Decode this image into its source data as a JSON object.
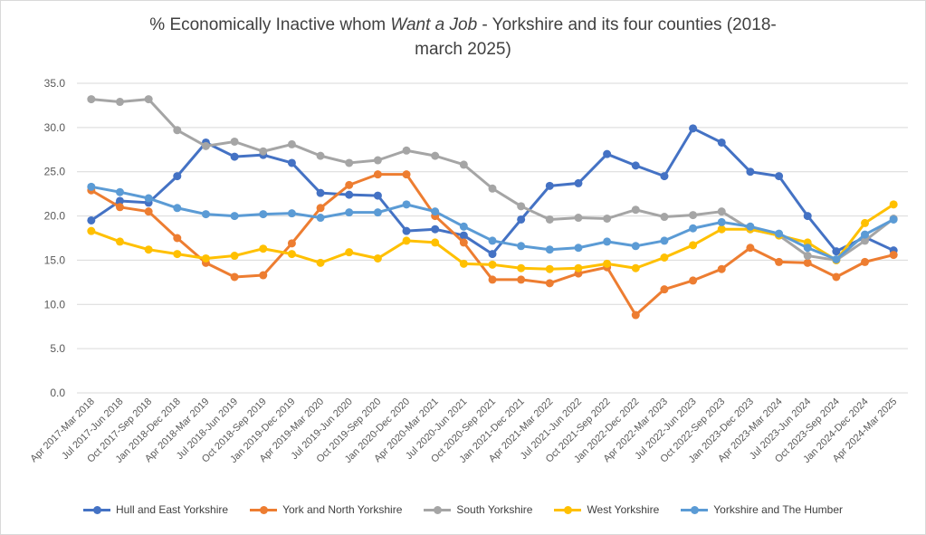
{
  "chart_data": {
    "type": "line",
    "title_parts": [
      "% Economically Inactive whom ",
      "Want a Job",
      "  - Yorkshire and its four counties (2018-",
      "march 2025)"
    ],
    "title": "% Economically Inactive whom Want a Job - Yorkshire and its four counties (2018-march 2025)",
    "xlabel": "",
    "ylabel": "",
    "ylim": [
      0,
      35
    ],
    "yticks": [
      "0.0",
      "5.0",
      "10.0",
      "15.0",
      "20.0",
      "25.0",
      "30.0",
      "35.0"
    ],
    "grid": true,
    "legend_position": "bottom",
    "categories": [
      "Apr 2017-Mar 2018",
      "Jul 2017-Jun 2018",
      "Oct 2017-Sep 2018",
      "Jan 2018-Dec 2018",
      "Apr 2018-Mar 2019",
      "Jul 2018-Jun 2019",
      "Oct 2018-Sep 2019",
      "Jan 2019-Dec 2019",
      "Apr 2019-Mar 2020",
      "Jul 2019-Jun 2020",
      "Oct 2019-Sep 2020",
      "Jan 2020-Dec 2020",
      "Apr 2020-Mar 2021",
      "Jul 2020-Jun 2021",
      "Oct 2020-Sep 2021",
      "Jan 2021-Dec 2021",
      "Apr 2021-Mar 2022",
      "Jul 2021-Jun 2022",
      "Oct 2021-Sep 2022",
      "Jan 2022-Dec 2022",
      "Apr 2022-Mar 2023",
      "Jul 2022-Jun 2023",
      "Oct 2022-Sep 2023",
      "Jan 2023-Dec 2023",
      "Apr 2023-Mar 2024",
      "Jul 2023-Jun 2024",
      "Oct 2023-Sep 2024",
      "Jan 2024-Dec 2024",
      "Apr 2024-Mar 2025"
    ],
    "series": [
      {
        "name": "Hull and East Yorkshire",
        "color": "#4472c4",
        "values": [
          19.5,
          21.7,
          21.5,
          24.5,
          28.3,
          26.7,
          26.9,
          26.0,
          22.6,
          22.4,
          22.3,
          18.3,
          18.5,
          17.8,
          15.7,
          19.6,
          23.4,
          23.7,
          27.0,
          25.7,
          24.5,
          29.9,
          28.3,
          25.0,
          24.5,
          20.0,
          16.0,
          17.6,
          16.1
        ]
      },
      {
        "name": "York and North Yorkshire",
        "color": "#ed7d31",
        "values": [
          22.9,
          21.0,
          20.5,
          17.5,
          14.7,
          13.1,
          13.3,
          16.9,
          20.9,
          23.5,
          24.7,
          24.7,
          20.0,
          17.0,
          12.8,
          12.8,
          12.4,
          13.5,
          14.2,
          8.8,
          11.7,
          12.7,
          14.0,
          16.4,
          14.8,
          14.7,
          13.1,
          14.8,
          15.6
        ]
      },
      {
        "name": "South Yorkshire",
        "color": "#a5a5a5",
        "values": [
          33.2,
          32.9,
          33.2,
          29.7,
          27.9,
          28.4,
          27.3,
          28.1,
          26.8,
          26.0,
          26.3,
          27.4,
          26.8,
          25.8,
          23.1,
          21.1,
          19.6,
          19.8,
          19.7,
          20.7,
          19.9,
          20.1,
          20.5,
          18.5,
          17.8,
          15.5,
          15.0,
          17.2,
          19.7
        ]
      },
      {
        "name": "West Yorkshire",
        "color": "#ffc000",
        "values": [
          18.3,
          17.1,
          16.2,
          15.7,
          15.2,
          15.5,
          16.3,
          15.7,
          14.7,
          15.9,
          15.2,
          17.2,
          17.0,
          14.6,
          14.5,
          14.1,
          14.0,
          14.1,
          14.6,
          14.1,
          15.3,
          16.7,
          18.5,
          18.5,
          17.8,
          17.0,
          15.0,
          19.2,
          21.3
        ]
      },
      {
        "name": "Yorkshire and The Humber",
        "color": "#5b9bd5",
        "values": [
          23.3,
          22.7,
          22.0,
          20.9,
          20.2,
          20.0,
          20.2,
          20.3,
          19.8,
          20.4,
          20.4,
          21.3,
          20.5,
          18.8,
          17.2,
          16.6,
          16.2,
          16.4,
          17.1,
          16.6,
          17.2,
          18.6,
          19.3,
          18.8,
          18.0,
          16.4,
          15.1,
          17.9,
          19.6
        ]
      }
    ]
  }
}
